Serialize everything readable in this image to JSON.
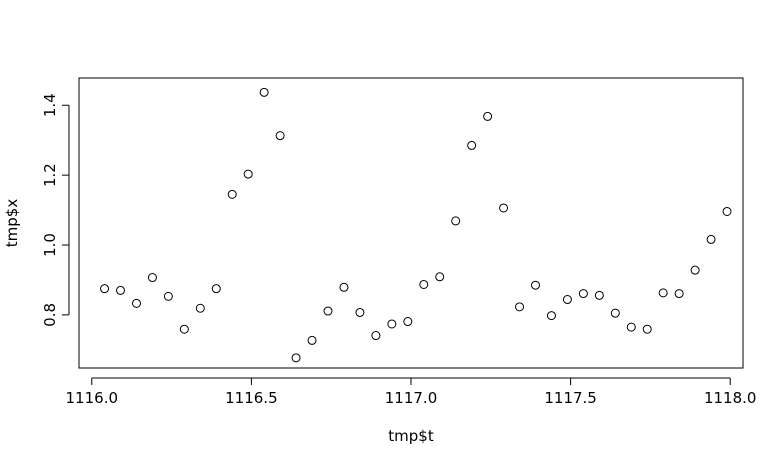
{
  "chart_data": {
    "type": "scatter",
    "title": "",
    "xlabel": "tmp$t",
    "ylabel": "tmp$x",
    "xlim": [
      1115.96,
      1118.04
    ],
    "ylim": [
      0.648,
      1.478
    ],
    "x_ticks": [
      1116.0,
      1116.5,
      1117.0,
      1117.5,
      1118.0
    ],
    "x_tick_labels": [
      "1116.0",
      "1116.5",
      "1117.0",
      "1117.5",
      "1118.0"
    ],
    "y_ticks": [
      0.8,
      1.0,
      1.2,
      1.4
    ],
    "y_tick_labels": [
      "0.8",
      "1.0",
      "1.2",
      "1.4"
    ],
    "grid": false,
    "legend": "none",
    "marker": "open-circle",
    "point_color": "#000000",
    "series": [
      {
        "points": [
          [
            1116.04,
            0.875
          ],
          [
            1116.09,
            0.87
          ],
          [
            1116.14,
            0.833
          ],
          [
            1116.19,
            0.907
          ],
          [
            1116.24,
            0.853
          ],
          [
            1116.29,
            0.759
          ],
          [
            1116.34,
            0.819
          ],
          [
            1116.39,
            0.875
          ],
          [
            1116.44,
            1.145
          ],
          [
            1116.49,
            1.203
          ],
          [
            1116.54,
            1.437
          ],
          [
            1116.59,
            1.313
          ],
          [
            1116.64,
            0.677
          ],
          [
            1116.69,
            0.727
          ],
          [
            1116.74,
            0.811
          ],
          [
            1116.79,
            0.879
          ],
          [
            1116.84,
            0.807
          ],
          [
            1116.89,
            0.741
          ],
          [
            1116.94,
            0.774
          ],
          [
            1116.99,
            0.781
          ],
          [
            1117.04,
            0.887
          ],
          [
            1117.09,
            0.909
          ],
          [
            1117.14,
            1.069
          ],
          [
            1117.19,
            1.285
          ],
          [
            1117.24,
            1.368
          ],
          [
            1117.29,
            1.106
          ],
          [
            1117.34,
            0.823
          ],
          [
            1117.39,
            0.885
          ],
          [
            1117.44,
            0.798
          ],
          [
            1117.49,
            0.844
          ],
          [
            1117.54,
            0.861
          ],
          [
            1117.59,
            0.856
          ],
          [
            1117.64,
            0.805
          ],
          [
            1117.69,
            0.765
          ],
          [
            1117.74,
            0.759
          ],
          [
            1117.79,
            0.863
          ],
          [
            1117.84,
            0.861
          ],
          [
            1117.89,
            0.928
          ],
          [
            1117.94,
            1.016
          ],
          [
            1117.99,
            1.096
          ]
        ]
      }
    ]
  }
}
